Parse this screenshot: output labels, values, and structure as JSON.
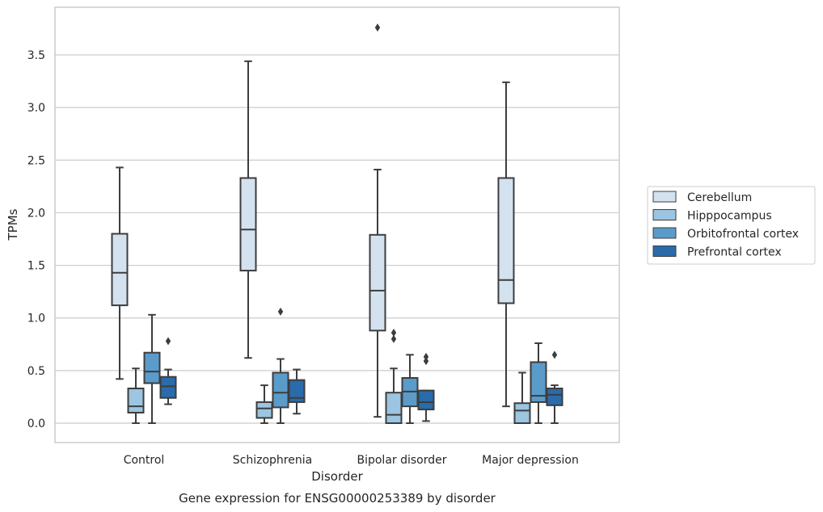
{
  "chart_data": {
    "type": "box",
    "title": "",
    "caption": "Gene expression for ENSG00000253389 by disorder",
    "xlabel": "Disorder",
    "ylabel": "TPMs",
    "ylim": [
      -0.18,
      3.95
    ],
    "yticks": [
      0.0,
      0.5,
      1.0,
      1.5,
      2.0,
      2.5,
      3.0,
      3.5
    ],
    "ytick_labels": [
      "0.0",
      "0.5",
      "1.0",
      "1.5",
      "2.0",
      "2.5",
      "3.0",
      "3.5"
    ],
    "grid": "horizontal",
    "legend_position": "right",
    "categories": [
      "Control",
      "Schizophrenia",
      "Bipolar disorder",
      "Major depression"
    ],
    "series": [
      {
        "name": "Cerebellum",
        "color": "#d4e2f0",
        "boxes": [
          {
            "whislo": 0.42,
            "q1": 1.12,
            "med": 1.43,
            "q3": 1.8,
            "whishi": 2.43,
            "fliers": []
          },
          {
            "whislo": 0.62,
            "q1": 1.45,
            "med": 1.84,
            "q3": 2.33,
            "whishi": 3.44,
            "fliers": []
          },
          {
            "whislo": 0.06,
            "q1": 0.88,
            "med": 1.26,
            "q3": 1.79,
            "whishi": 2.41,
            "fliers": [
              3.76
            ]
          },
          {
            "whislo": 0.16,
            "q1": 1.14,
            "med": 1.36,
            "q3": 2.33,
            "whishi": 3.24,
            "fliers": []
          }
        ]
      },
      {
        "name": "Hipppocampus",
        "color": "#9bc5e0",
        "boxes": [
          {
            "whislo": 0.0,
            "q1": 0.1,
            "med": 0.16,
            "q3": 0.33,
            "whishi": 0.52,
            "fliers": []
          },
          {
            "whislo": 0.0,
            "q1": 0.05,
            "med": 0.14,
            "q3": 0.2,
            "whishi": 0.36,
            "fliers": []
          },
          {
            "whislo": 0.0,
            "q1": 0.0,
            "med": 0.08,
            "q3": 0.29,
            "whishi": 0.52,
            "fliers": [
              0.8,
              0.86
            ]
          },
          {
            "whislo": 0.0,
            "q1": 0.0,
            "med": 0.12,
            "q3": 0.19,
            "whishi": 0.48,
            "fliers": []
          }
        ]
      },
      {
        "name": "Orbitofrontal cortex",
        "color": "#5a9bc9",
        "boxes": [
          {
            "whislo": 0.0,
            "q1": 0.38,
            "med": 0.49,
            "q3": 0.67,
            "whishi": 1.03,
            "fliers": []
          },
          {
            "whislo": 0.0,
            "q1": 0.15,
            "med": 0.29,
            "q3": 0.48,
            "whishi": 0.61,
            "fliers": [
              1.06
            ]
          },
          {
            "whislo": 0.0,
            "q1": 0.16,
            "med": 0.3,
            "q3": 0.43,
            "whishi": 0.65,
            "fliers": []
          },
          {
            "whislo": 0.0,
            "q1": 0.2,
            "med": 0.26,
            "q3": 0.58,
            "whishi": 0.76,
            "fliers": []
          }
        ]
      },
      {
        "name": "Prefrontal cortex",
        "color": "#2a6bab",
        "boxes": [
          {
            "whislo": 0.18,
            "q1": 0.24,
            "med": 0.35,
            "q3": 0.44,
            "whishi": 0.51,
            "fliers": [
              0.78
            ]
          },
          {
            "whislo": 0.09,
            "q1": 0.2,
            "med": 0.24,
            "q3": 0.41,
            "whishi": 0.51,
            "fliers": []
          },
          {
            "whislo": 0.02,
            "q1": 0.13,
            "med": 0.2,
            "q3": 0.31,
            "whishi": 0.31,
            "fliers": [
              0.59,
              0.63
            ]
          },
          {
            "whislo": 0.0,
            "q1": 0.17,
            "med": 0.27,
            "q3": 0.33,
            "whishi": 0.36,
            "fliers": [
              0.65
            ]
          }
        ]
      }
    ]
  }
}
